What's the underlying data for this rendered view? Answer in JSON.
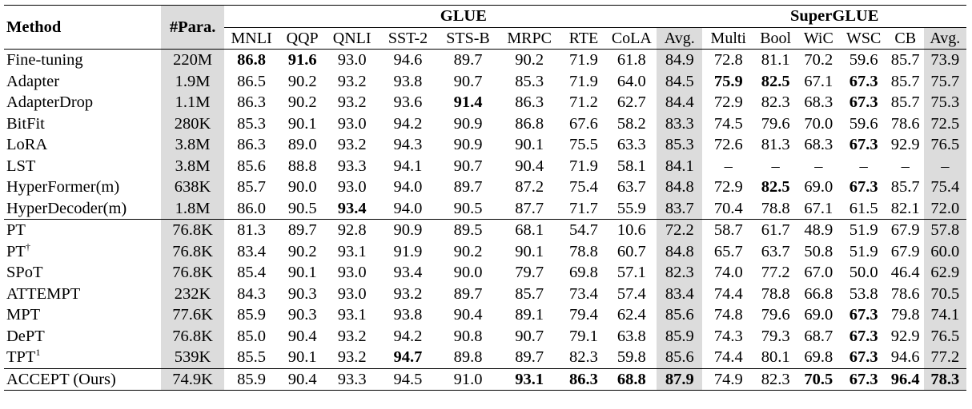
{
  "header": {
    "method": "Method",
    "params": "#Para.",
    "glue": "GLUE",
    "superglue": "SuperGLUE",
    "glue_cols": [
      "MNLI",
      "QQP",
      "QNLI",
      "SST-2",
      "STS-B",
      "MRPC",
      "RTE",
      "CoLA",
      "Avg."
    ],
    "superglue_cols": [
      "Multi",
      "Bool",
      "WiC",
      "WSC",
      "CB",
      "Avg."
    ]
  },
  "rows": [
    {
      "method": "Fine-tuning",
      "sup": "",
      "params": "220M",
      "vals": [
        "86.8",
        "91.6",
        "93.0",
        "94.6",
        "89.7",
        "90.2",
        "71.9",
        "61.8",
        "84.9",
        "72.8",
        "81.1",
        "70.2",
        "59.6",
        "85.7",
        "73.9"
      ],
      "bold": [
        0,
        1
      ]
    },
    {
      "method": "Adapter",
      "sup": "",
      "params": "1.9M",
      "vals": [
        "86.5",
        "90.2",
        "93.2",
        "93.8",
        "90.7",
        "85.3",
        "71.9",
        "64.0",
        "84.5",
        "75.9",
        "82.5",
        "67.1",
        "67.3",
        "85.7",
        "75.7"
      ],
      "bold": [
        9,
        10,
        12
      ]
    },
    {
      "method": "AdapterDrop",
      "sup": "",
      "params": "1.1M",
      "vals": [
        "86.3",
        "90.2",
        "93.2",
        "93.6",
        "91.4",
        "86.3",
        "71.2",
        "62.7",
        "84.4",
        "72.9",
        "82.3",
        "68.3",
        "67.3",
        "85.7",
        "75.3"
      ],
      "bold": [
        4,
        12
      ]
    },
    {
      "method": "BitFit",
      "sup": "",
      "params": "280K",
      "vals": [
        "85.3",
        "90.1",
        "93.0",
        "94.2",
        "90.9",
        "86.8",
        "67.6",
        "58.2",
        "83.3",
        "74.5",
        "79.6",
        "70.0",
        "59.6",
        "78.6",
        "72.5"
      ],
      "bold": []
    },
    {
      "method": "LoRA",
      "sup": "",
      "params": "3.8M",
      "vals": [
        "86.3",
        "89.0",
        "93.2",
        "94.3",
        "90.9",
        "90.1",
        "75.5",
        "63.3",
        "85.3",
        "72.6",
        "81.3",
        "68.3",
        "67.3",
        "92.9",
        "76.5"
      ],
      "bold": [
        12
      ]
    },
    {
      "method": "LST",
      "sup": "",
      "params": "3.8M",
      "vals": [
        "85.6",
        "88.8",
        "93.3",
        "94.1",
        "90.7",
        "90.4",
        "71.9",
        "58.1",
        "84.1",
        "–",
        "–",
        "–",
        "–",
        "–",
        "–"
      ],
      "bold": []
    },
    {
      "method": "HyperFormer(m)",
      "sup": "",
      "params": "638K",
      "vals": [
        "85.7",
        "90.0",
        "93.0",
        "94.0",
        "89.7",
        "87.2",
        "75.4",
        "63.7",
        "84.8",
        "72.9",
        "82.5",
        "69.0",
        "67.3",
        "85.7",
        "75.4"
      ],
      "bold": [
        10,
        12
      ]
    },
    {
      "method": "HyperDecoder(m)",
      "sup": "",
      "params": "1.8M",
      "vals": [
        "86.0",
        "90.5",
        "93.4",
        "94.0",
        "90.5",
        "87.7",
        "71.7",
        "55.9",
        "83.7",
        "70.4",
        "78.8",
        "67.1",
        "61.5",
        "82.1",
        "72.0"
      ],
      "bold": [
        2
      ]
    },
    {
      "method": "PT",
      "sup": "",
      "params": "76.8K",
      "vals": [
        "81.3",
        "89.7",
        "92.8",
        "90.9",
        "89.5",
        "68.1",
        "54.7",
        "10.6",
        "72.2",
        "58.7",
        "61.7",
        "48.9",
        "51.9",
        "67.9",
        "57.8"
      ],
      "bold": []
    },
    {
      "method": "PT",
      "sup": "†",
      "params": "76.8K",
      "vals": [
        "83.4",
        "90.2",
        "93.1",
        "91.9",
        "90.2",
        "90.1",
        "78.8",
        "60.7",
        "84.8",
        "65.7",
        "63.7",
        "50.8",
        "51.9",
        "67.9",
        "60.0"
      ],
      "bold": []
    },
    {
      "method": "SPoT",
      "sup": "",
      "params": "76.8K",
      "vals": [
        "85.4",
        "90.1",
        "93.0",
        "93.4",
        "90.0",
        "79.7",
        "69.8",
        "57.1",
        "82.3",
        "74.0",
        "77.2",
        "67.0",
        "50.0",
        "46.4",
        "62.9"
      ],
      "bold": []
    },
    {
      "method": "ATTEMPT",
      "sup": "",
      "params": "232K",
      "vals": [
        "84.3",
        "90.3",
        "93.0",
        "93.2",
        "89.7",
        "85.7",
        "73.4",
        "57.4",
        "83.4",
        "74.4",
        "78.8",
        "66.8",
        "53.8",
        "78.6",
        "70.5"
      ],
      "bold": []
    },
    {
      "method": "MPT",
      "sup": "",
      "params": "77.6K",
      "vals": [
        "85.9",
        "90.3",
        "93.1",
        "93.8",
        "90.4",
        "89.1",
        "79.4",
        "62.4",
        "85.6",
        "74.8",
        "79.6",
        "69.0",
        "67.3",
        "79.8",
        "74.1"
      ],
      "bold": [
        12
      ]
    },
    {
      "method": "DePT",
      "sup": "",
      "params": "76.8K",
      "vals": [
        "85.0",
        "90.4",
        "93.2",
        "94.2",
        "90.8",
        "90.7",
        "79.1",
        "63.8",
        "85.9",
        "74.3",
        "79.3",
        "68.7",
        "67.3",
        "92.9",
        "76.5"
      ],
      "bold": [
        12
      ]
    },
    {
      "method": "TPT",
      "sup": "1",
      "params": "539K",
      "vals": [
        "85.5",
        "90.1",
        "93.2",
        "94.7",
        "89.8",
        "89.7",
        "82.3",
        "59.8",
        "85.6",
        "74.4",
        "80.1",
        "69.8",
        "67.3",
        "94.6",
        "77.2"
      ],
      "bold": [
        3,
        12
      ]
    },
    {
      "method": "ACCEPT (Ours)",
      "sup": "",
      "params": "74.9K",
      "vals": [
        "85.9",
        "90.4",
        "93.3",
        "94.5",
        "91.0",
        "93.1",
        "86.3",
        "68.8",
        "87.9",
        "74.9",
        "82.3",
        "70.5",
        "67.3",
        "96.4",
        "78.3"
      ],
      "bold": [
        5,
        6,
        7,
        8,
        11,
        12,
        13,
        14
      ]
    }
  ]
}
